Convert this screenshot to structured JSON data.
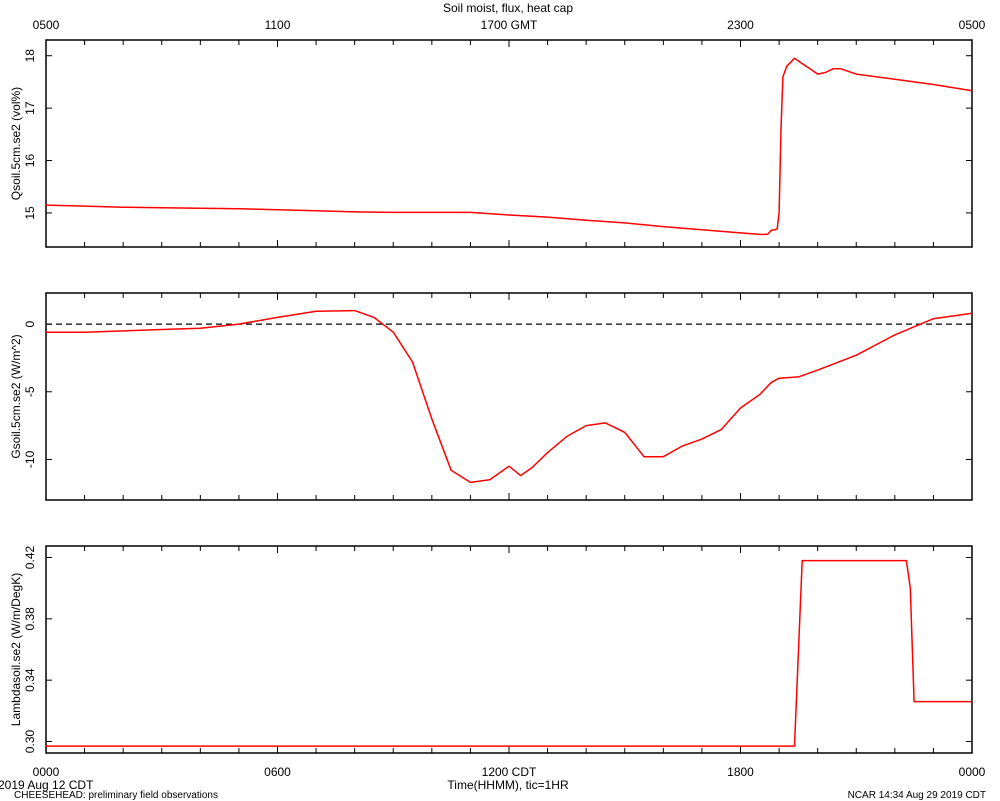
{
  "title": "Soil moist, flux, heat cap",
  "top_axis": {
    "label_suffix": "GMT",
    "ticks": [
      "0500",
      "1100",
      "1700 GMT",
      "2300",
      "0500"
    ]
  },
  "bottom_axis": {
    "label": "Time(HHMM), tic=1HR",
    "ticks": [
      "0000",
      "0600",
      "1200 CDT",
      "1800",
      "0000"
    ]
  },
  "footer": {
    "date": "2019 Aug 12 CDT",
    "project": "CHEESEHEAD: preliminary field observations",
    "stamp": "NCAR 14:34 Aug 29 2019 CDT"
  },
  "colors": {
    "line": "#ff0000",
    "axis": "#000000",
    "zero_line": "#000000"
  },
  "chart_data": [
    {
      "type": "line",
      "ylabel": "Qsoil.5cm.se2 (vol%)",
      "ylim": [
        14.35,
        18.3
      ],
      "yticks": [
        15,
        16,
        17,
        18
      ],
      "x_unit": "hours since 0000 CDT",
      "xlim": [
        0,
        24
      ],
      "series": [
        {
          "x": [
            0,
            1,
            2,
            3,
            4,
            5,
            6,
            7,
            8,
            9,
            10,
            11,
            12,
            13,
            14,
            15,
            16,
            17,
            18,
            18.5,
            18.7,
            18.8,
            18.9,
            18.95,
            19.0,
            19.05,
            19.1,
            19.2,
            19.4,
            19.6,
            19.8,
            20.0,
            20.2,
            20.4,
            20.6,
            20.8,
            21,
            22,
            23,
            24
          ],
          "y": [
            15.15,
            15.13,
            15.11,
            15.1,
            15.09,
            15.08,
            15.06,
            15.04,
            15.02,
            15.01,
            15.01,
            15.01,
            14.96,
            14.92,
            14.86,
            14.81,
            14.74,
            14.68,
            14.62,
            14.59,
            14.59,
            14.67,
            14.68,
            14.7,
            15.0,
            16.6,
            17.6,
            17.8,
            17.95,
            17.85,
            17.75,
            17.65,
            17.68,
            17.75,
            17.75,
            17.7,
            17.65,
            17.55,
            17.45,
            17.33
          ]
        }
      ]
    },
    {
      "type": "line",
      "ylabel": "Gsoil.5cm.se2 (W/m^2)",
      "ylim": [
        -13.0,
        2.3
      ],
      "yticks": [
        0,
        -5,
        -10
      ],
      "zero_line": true,
      "x_unit": "hours since 0000 CDT",
      "xlim": [
        0,
        24
      ],
      "series": [
        {
          "x": [
            0,
            1,
            2,
            3,
            4,
            5,
            6,
            7,
            8,
            8.5,
            9,
            9.5,
            10,
            10.5,
            11,
            11.5,
            12,
            12.3,
            12.6,
            13,
            13.5,
            14,
            14.5,
            15,
            15.5,
            16,
            16.5,
            17,
            17.5,
            18,
            18.5,
            18.8,
            19,
            19.5,
            20,
            21,
            22,
            23,
            24
          ],
          "y": [
            -0.6,
            -0.6,
            -0.5,
            -0.4,
            -0.3,
            0.0,
            0.5,
            0.95,
            1.0,
            0.5,
            -0.6,
            -2.8,
            -7.0,
            -10.8,
            -11.7,
            -11.5,
            -10.5,
            -11.2,
            -10.6,
            -9.5,
            -8.3,
            -7.5,
            -7.3,
            -8.0,
            -9.8,
            -9.8,
            -9.0,
            -8.5,
            -7.8,
            -6.2,
            -5.2,
            -4.3,
            -4.0,
            -3.9,
            -3.4,
            -2.3,
            -0.8,
            0.4,
            0.8
          ]
        }
      ]
    },
    {
      "type": "line",
      "ylabel": "Lambdasoil.se2 (W/m/DegK)",
      "ylim": [
        0.2925,
        0.4275
      ],
      "yticks": [
        0.3,
        0.34,
        0.38,
        0.42
      ],
      "x_unit": "hours since 0000 CDT",
      "xlim": [
        0,
        24
      ],
      "series": [
        {
          "x": [
            0,
            19.4,
            19.6,
            22.3,
            22.4,
            22.5,
            24
          ],
          "y": [
            0.297,
            0.297,
            0.418,
            0.418,
            0.4,
            0.326,
            0.326
          ]
        }
      ]
    }
  ]
}
